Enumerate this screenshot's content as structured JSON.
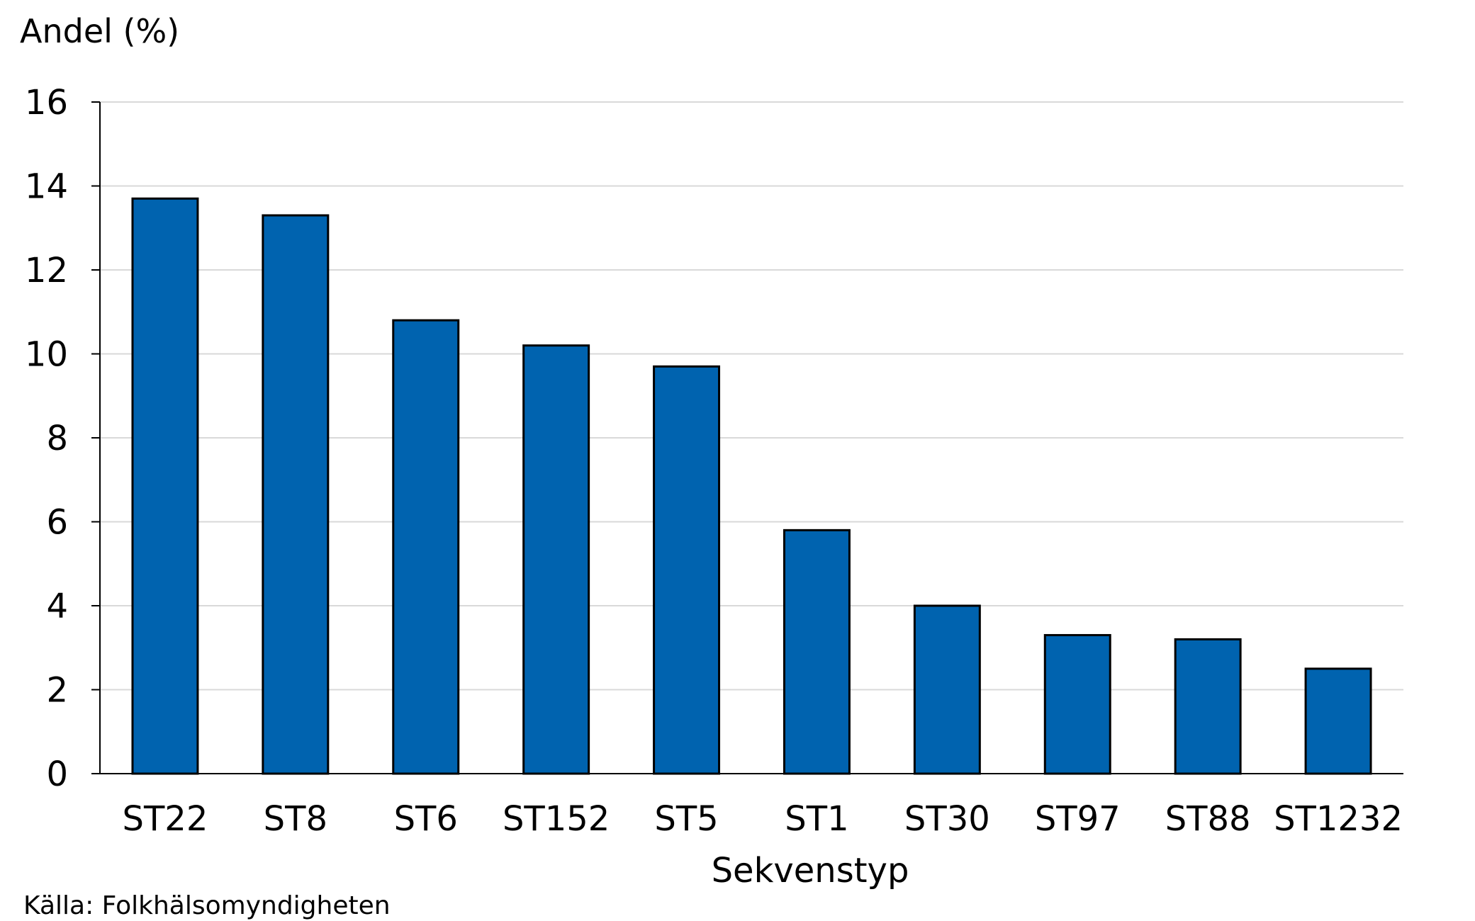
{
  "chart_data": {
    "type": "bar",
    "ylabel": "Andel (%)",
    "xlabel": "Sekvenstyp",
    "categories": [
      "ST22",
      "ST8",
      "ST6",
      "ST152",
      "ST5",
      "ST1",
      "ST30",
      "ST97",
      "ST88",
      "ST1232"
    ],
    "values": [
      13.7,
      13.3,
      10.8,
      10.2,
      9.7,
      5.8,
      4.0,
      3.3,
      3.2,
      2.5
    ],
    "ylim": [
      0,
      16
    ],
    "yticks": [
      "0",
      "2",
      "4",
      "6",
      "8",
      "10",
      "12",
      "14",
      "16"
    ],
    "grid": true,
    "legend": "none",
    "bar_color": "#0063AF",
    "bar_edge_color": "#000000",
    "grid_color": "#d9d9d9"
  },
  "source": "Källa: Folkhälsomyndigheten"
}
